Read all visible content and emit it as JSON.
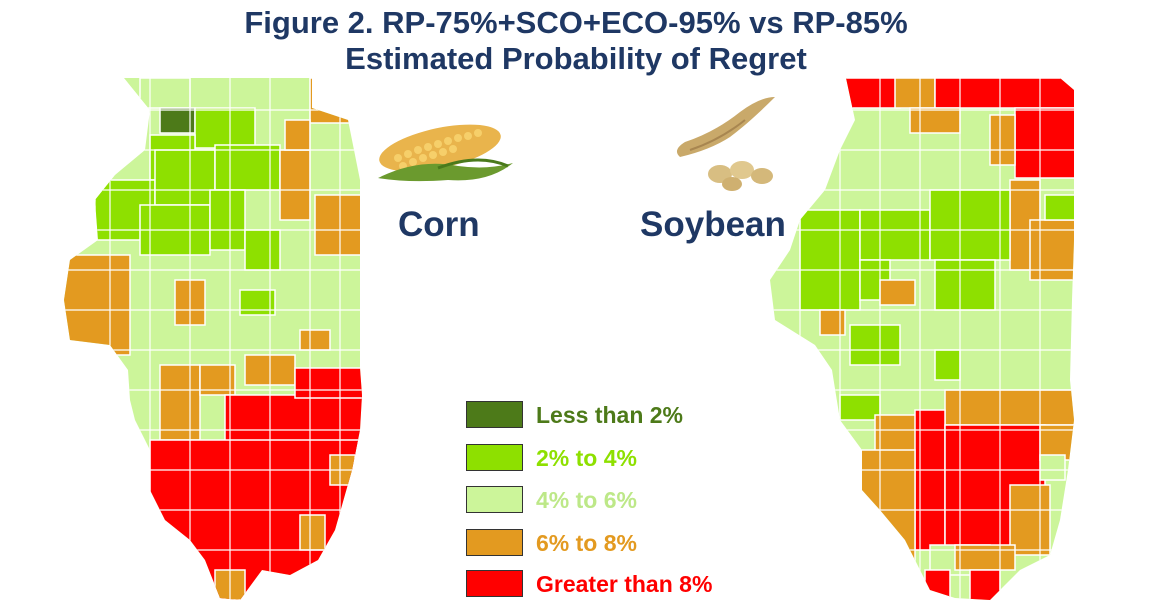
{
  "title": {
    "line1": "Figure 2. RP-75%+SCO+ECO-95% vs RP-85%",
    "line2": "Estimated Probability of Regret"
  },
  "labels": {
    "corn": "Corn",
    "soybean": "Soybean"
  },
  "legend": [
    {
      "label": "Less than 2%",
      "color": "#4d7a19",
      "text_color": "#4d7a19"
    },
    {
      "label": "2% to 4%",
      "color": "#8ee000",
      "text_color": "#8ee000"
    },
    {
      "label": "4% to 6%",
      "color": "#ccf59a",
      "text_color": "#bde888"
    },
    {
      "label": "6% to 8%",
      "color": "#e39a20",
      "text_color": "#e39a20"
    },
    {
      "label": "Greater than 8%",
      "color": "#ff0000",
      "text_color": "#ff0000"
    }
  ],
  "icons": {
    "corn": "corn-cob-icon",
    "soybean": "soybean-pod-icon"
  }
}
